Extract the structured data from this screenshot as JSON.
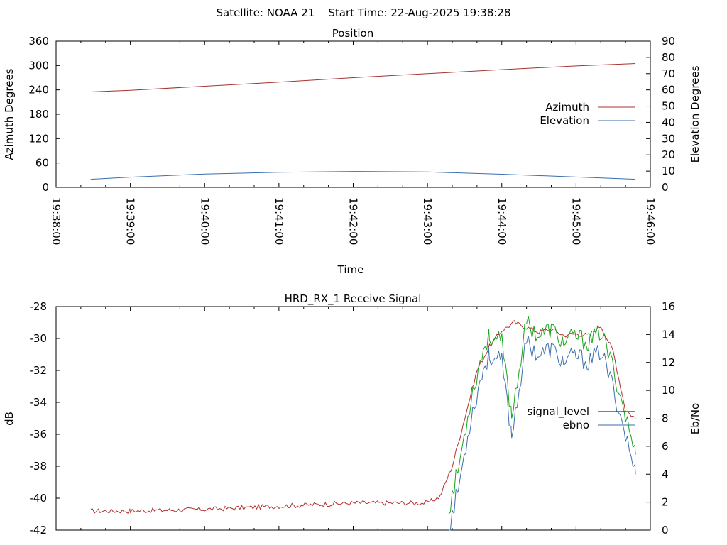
{
  "header": {
    "title": "Satellite: NOAA 21    Start Time: 22-Aug-2025 19:38:28"
  },
  "colors": {
    "azimuth": "#a83232",
    "elevation": "#3a6fae",
    "signal_level": "#b03030",
    "ebno_green": "#17a317",
    "ebno_blue": "#3a6fae",
    "legend_signal": "#000000"
  },
  "chart_data": [
    {
      "type": "line",
      "title": "Position",
      "xlabel": "Time",
      "ylabel": "Azimuth Degrees",
      "y2label": "Elevation Degrees",
      "xlim": [
        "19:38:00",
        "19:46:00"
      ],
      "x_ticks": [
        "19:38:00",
        "19:39:00",
        "19:40:00",
        "19:41:00",
        "19:42:00",
        "19:43:00",
        "19:44:00",
        "19:45:00",
        "19:46:00"
      ],
      "ylim": [
        0,
        360
      ],
      "y_ticks": [
        "0",
        "60",
        "120",
        "180",
        "240",
        "300",
        "360"
      ],
      "y2lim": [
        0,
        90
      ],
      "y2_ticks": [
        "0",
        "10",
        "20",
        "30",
        "40",
        "50",
        "60",
        "70",
        "80",
        "90"
      ],
      "grid": false,
      "legend": "right",
      "series": [
        {
          "name": "Azimuth",
          "axis": "y",
          "x": [
            "19:38:28",
            "19:39:00",
            "19:40:00",
            "19:41:00",
            "19:42:00",
            "19:43:00",
            "19:44:00",
            "19:45:00",
            "19:45:48"
          ],
          "values": [
            235,
            239,
            249,
            259,
            270,
            280,
            290,
            299,
            305
          ]
        },
        {
          "name": "Elevation",
          "axis": "y2",
          "x": [
            "19:38:28",
            "19:39:00",
            "19:40:00",
            "19:41:00",
            "19:42:00",
            "19:43:00",
            "19:44:00",
            "19:45:00",
            "19:45:48"
          ],
          "values": [
            5,
            6.3,
            8.2,
            9.3,
            9.8,
            9.5,
            8.1,
            6.4,
            5
          ]
        }
      ]
    },
    {
      "type": "line",
      "title": "HRD_RX_1 Receive Signal",
      "ylabel": "dB",
      "y2label": "Eb/No",
      "xlim": [
        "19:38:00",
        "19:46:00"
      ],
      "ylim": [
        -42,
        -28
      ],
      "y_ticks": [
        "-42",
        "-40",
        "-38",
        "-36",
        "-34",
        "-32",
        "-30",
        "-28"
      ],
      "y2lim": [
        0,
        16
      ],
      "y2_ticks": [
        "0",
        "2",
        "4",
        "6",
        "8",
        "10",
        "12",
        "14",
        "16"
      ],
      "grid": false,
      "legend": "right",
      "series": [
        {
          "name": "signal_level",
          "axis": "y",
          "x": [
            "19:38:28",
            "19:39:00",
            "19:40:00",
            "19:41:00",
            "19:42:00",
            "19:43:00",
            "19:43:10",
            "19:43:20",
            "19:43:30",
            "19:43:40",
            "19:43:50",
            "19:44:00",
            "19:44:10",
            "19:44:20",
            "19:44:30",
            "19:44:40",
            "19:44:50",
            "19:45:00",
            "19:45:10",
            "19:45:20",
            "19:45:30",
            "19:45:40",
            "19:45:48"
          ],
          "values": [
            -40.8,
            -40.8,
            -40.7,
            -40.5,
            -40.3,
            -40.3,
            -39.9,
            -38.0,
            -35.0,
            -32.0,
            -30.5,
            -29.5,
            -29.0,
            -29.3,
            -29.6,
            -29.4,
            -29.8,
            -29.7,
            -29.8,
            -29.2,
            -30.8,
            -34.5,
            -35.0
          ]
        },
        {
          "name": "ebno",
          "axis": "y2",
          "x": [
            "19:43:17",
            "19:43:25",
            "19:43:35",
            "19:43:45",
            "19:43:50",
            "19:44:00",
            "19:44:08",
            "19:44:20",
            "19:44:30",
            "19:44:40",
            "19:44:50",
            "19:45:00",
            "19:45:10",
            "19:45:20",
            "19:45:30",
            "19:45:40",
            "19:45:48"
          ],
          "values": [
            0,
            3.0,
            8.0,
            11.5,
            12.5,
            12.0,
            6.8,
            13.5,
            12.5,
            13.0,
            12.0,
            12.5,
            12.0,
            12.8,
            10.2,
            6.8,
            4.0
          ]
        }
      ]
    }
  ]
}
